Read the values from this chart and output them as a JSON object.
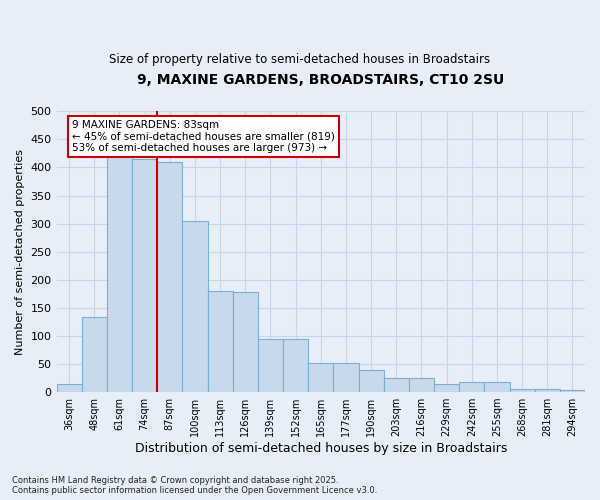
{
  "title": "9, MAXINE GARDENS, BROADSTAIRS, CT10 2SU",
  "subtitle": "Size of property relative to semi-detached houses in Broadstairs",
  "xlabel": "Distribution of semi-detached houses by size in Broadstairs",
  "ylabel": "Number of semi-detached properties",
  "categories": [
    "36sqm",
    "48sqm",
    "61sqm",
    "74sqm",
    "87sqm",
    "100sqm",
    "113sqm",
    "126sqm",
    "139sqm",
    "152sqm",
    "165sqm",
    "177sqm",
    "190sqm",
    "203sqm",
    "216sqm",
    "229sqm",
    "242sqm",
    "255sqm",
    "268sqm",
    "281sqm",
    "294sqm"
  ],
  "values": [
    15,
    133,
    420,
    415,
    410,
    305,
    180,
    178,
    95,
    95,
    52,
    52,
    40,
    25,
    25,
    15,
    18,
    18,
    5,
    5,
    3
  ],
  "bar_color": "#c8d9ec",
  "bar_edge_color": "#7aafd4",
  "grid_color": "#c8d4e8",
  "background_color": "#e8eef8",
  "vline_color": "#cc0000",
  "annotation_text": "9 MAXINE GARDENS: 83sqm\n← 45% of semi-detached houses are smaller (819)\n53% of semi-detached houses are larger (973) →",
  "annotation_box_color": "#ffffff",
  "annotation_box_edge": "#cc0000",
  "footer": "Contains HM Land Registry data © Crown copyright and database right 2025.\nContains public sector information licensed under the Open Government Licence v3.0.",
  "ylim": [
    0,
    500
  ],
  "yticks": [
    0,
    50,
    100,
    150,
    200,
    250,
    300,
    350,
    400,
    450,
    500
  ]
}
